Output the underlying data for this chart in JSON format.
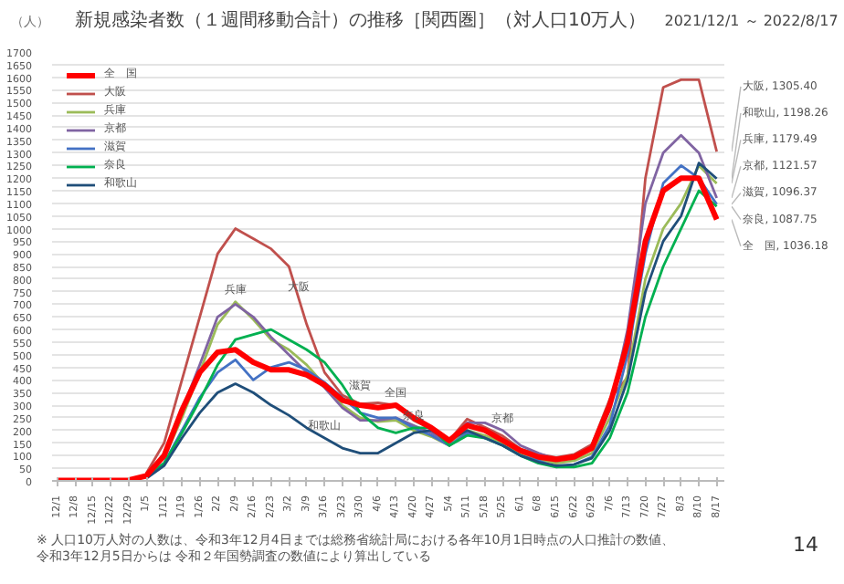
{
  "chart_data": {
    "type": "line",
    "title": "新規感染者数（１週間移動合計）の推移［関西圏］（対人口10万人）",
    "subtitle": "2021/12/1 ～ 2022/8/17",
    "ylabel": "（人）",
    "x": [
      "2021-12-01",
      "2021-12-08",
      "2021-12-15",
      "2021-12-22",
      "2021-12-29",
      "2022-01-05",
      "2022-01-12",
      "2022-01-19",
      "2022-01-26",
      "2022-02-02",
      "2022-02-09",
      "2022-02-16",
      "2022-02-23",
      "2022-03-02",
      "2022-03-09",
      "2022-03-16",
      "2022-03-23",
      "2022-03-30",
      "2022-04-06",
      "2022-04-13",
      "2022-04-20",
      "2022-04-27",
      "2022-05-04",
      "2022-05-11",
      "2022-05-18",
      "2022-05-25",
      "2022-06-01",
      "2022-06-08",
      "2022-06-15",
      "2022-06-22",
      "2022-06-29",
      "2022-07-06",
      "2022-07-13",
      "2022-07-20",
      "2022-07-27",
      "2022-08-03",
      "2022-08-10",
      "2022-08-17"
    ],
    "series": [
      {
        "name": "全　国",
        "color": "#ff0000",
        "values": [
          2,
          2,
          2,
          2,
          3,
          20,
          100,
          280,
          430,
          510,
          520,
          470,
          440,
          440,
          420,
          380,
          320,
          300,
          290,
          300,
          250,
          210,
          160,
          220,
          200,
          160,
          120,
          95,
          85,
          95,
          130,
          300,
          550,
          950,
          1150,
          1200,
          1200,
          1036.18
        ]
      },
      {
        "name": "大阪",
        "color": "#c0504d",
        "values": [
          null,
          null,
          null,
          null,
          null,
          30,
          150,
          400,
          650,
          900,
          1000,
          960,
          920,
          850,
          620,
          430,
          340,
          305,
          310,
          300,
          240,
          205,
          160,
          245,
          212,
          178,
          126,
          106,
          93,
          105,
          145,
          324,
          410,
          1200,
          1560,
          1590,
          1590,
          1305.4
        ]
      },
      {
        "name": "兵庫",
        "color": "#9bbb59",
        "values": [
          null,
          null,
          null,
          null,
          null,
          20,
          90,
          250,
          430,
          620,
          710,
          640,
          560,
          520,
          460,
          380,
          300,
          250,
          235,
          240,
          200,
          175,
          140,
          200,
          180,
          150,
          105,
          85,
          70,
          80,
          110,
          250,
          420,
          800,
          1000,
          1100,
          1250,
          1179.49
        ]
      },
      {
        "name": "京都",
        "color": "#8064a2",
        "values": [
          null,
          null,
          null,
          null,
          null,
          20,
          100,
          280,
          460,
          650,
          700,
          650,
          570,
          500,
          430,
          370,
          290,
          240,
          240,
          250,
          220,
          190,
          150,
          230,
          230,
          200,
          140,
          110,
          85,
          95,
          130,
          280,
          600,
          1100,
          1300,
          1370,
          1300,
          1121.57
        ]
      },
      {
        "name": "滋賀",
        "color": "#4472c4",
        "values": [
          null,
          null,
          null,
          null,
          null,
          15,
          70,
          200,
          330,
          430,
          480,
          400,
          450,
          470,
          440,
          390,
          330,
          270,
          250,
          250,
          210,
          180,
          140,
          190,
          170,
          140,
          100,
          80,
          55,
          65,
          95,
          220,
          500,
          900,
          1180,
          1250,
          1200,
          1096.37
        ]
      },
      {
        "name": "奈良",
        "color": "#00b050",
        "values": [
          null,
          null,
          null,
          null,
          null,
          15,
          70,
          190,
          320,
          460,
          560,
          580,
          600,
          560,
          520,
          470,
          380,
          270,
          210,
          190,
          210,
          210,
          140,
          180,
          170,
          140,
          100,
          70,
          55,
          55,
          70,
          170,
          350,
          650,
          850,
          1000,
          1150,
          1087.75
        ]
      },
      {
        "name": "和歌山",
        "color": "#1f4e79",
        "values": [
          null,
          null,
          null,
          null,
          null,
          10,
          60,
          170,
          270,
          350,
          385,
          350,
          300,
          260,
          210,
          170,
          130,
          110,
          110,
          150,
          190,
          200,
          160,
          200,
          170,
          140,
          100,
          75,
          60,
          65,
          90,
          200,
          400,
          750,
          950,
          1050,
          1260,
          1198.26
        ]
      }
    ],
    "xlim": [
      "2021-11-29",
      "2022-08-20"
    ],
    "xticks": [
      {
        "value": "2021-12-01",
        "label": "12/1"
      },
      {
        "value": "2021-12-08",
        "label": "12/8"
      },
      {
        "value": "2021-12-15",
        "label": "12/15"
      },
      {
        "value": "2021-12-22",
        "label": "12/22"
      },
      {
        "value": "2021-12-29",
        "label": "12/29"
      },
      {
        "value": "2022-01-05",
        "label": "1/5"
      },
      {
        "value": "2022-01-12",
        "label": "1/12"
      },
      {
        "value": "2022-01-19",
        "label": "1/19"
      },
      {
        "value": "2022-01-26",
        "label": "1/26"
      },
      {
        "value": "2022-02-02",
        "label": "2/2"
      },
      {
        "value": "2022-02-09",
        "label": "2/9"
      },
      {
        "value": "2022-02-16",
        "label": "2/16"
      },
      {
        "value": "2022-02-23",
        "label": "2/23"
      },
      {
        "value": "2022-03-02",
        "label": "3/2"
      },
      {
        "value": "2022-03-09",
        "label": "3/9"
      },
      {
        "value": "2022-03-16",
        "label": "3/16"
      },
      {
        "value": "2022-03-23",
        "label": "3/23"
      },
      {
        "value": "2022-03-30",
        "label": "3/30"
      },
      {
        "value": "2022-04-06",
        "label": "4/6"
      },
      {
        "value": "2022-04-13",
        "label": "4/13"
      },
      {
        "value": "2022-04-20",
        "label": "4/20"
      },
      {
        "value": "2022-04-27",
        "label": "4/27"
      },
      {
        "value": "2022-05-04",
        "label": "5/4"
      },
      {
        "value": "2022-05-11",
        "label": "5/11"
      },
      {
        "value": "2022-05-18",
        "label": "5/18"
      },
      {
        "value": "2022-05-25",
        "label": "5/25"
      },
      {
        "value": "2022-06-01",
        "label": "6/1"
      },
      {
        "value": "2022-06-08",
        "label": "6/8"
      },
      {
        "value": "2022-06-15",
        "label": "6/15"
      },
      {
        "value": "2022-06-22",
        "label": "6/22"
      },
      {
        "value": "2022-06-29",
        "label": "6/29"
      },
      {
        "value": "2022-07-06",
        "label": "7/6"
      },
      {
        "value": "2022-07-13",
        "label": "7/13"
      },
      {
        "value": "2022-07-20",
        "label": "7/20"
      },
      {
        "value": "2022-07-27",
        "label": "7/27"
      },
      {
        "value": "2022-08-03",
        "label": "8/3"
      },
      {
        "value": "2022-08-10",
        "label": "8/10"
      },
      {
        "value": "2022-08-17",
        "label": "8/17"
      }
    ],
    "ylim": [
      0,
      1700
    ],
    "yticks": [
      0,
      50,
      100,
      150,
      200,
      250,
      300,
      350,
      400,
      450,
      500,
      550,
      600,
      650,
      700,
      750,
      800,
      850,
      900,
      950,
      1000,
      1050,
      1100,
      1150,
      1200,
      1250,
      1300,
      1350,
      1400,
      1450,
      1500,
      1550,
      1600,
      1650,
      1700
    ],
    "grid": "y",
    "legend": "top left",
    "marker": "none",
    "line_style": "solid",
    "annotations": [
      {
        "text": "大阪, 1305.40",
        "x": "2022-08-17",
        "y": 1305.4
      },
      {
        "text": "和歌山, 1198.26",
        "x": "2022-08-17",
        "y": 1198.26
      },
      {
        "text": "兵庫, 1179.49",
        "x": "2022-08-17",
        "y": 1179.49
      },
      {
        "text": "京都, 1121.57",
        "x": "2022-08-17",
        "y": 1121.57
      },
      {
        "text": "滋賀, 1096.37",
        "x": "2022-08-17",
        "y": 1096.37
      },
      {
        "text": "奈良, 1087.75",
        "x": "2022-08-17",
        "y": 1087.75
      },
      {
        "text": "全　国, 1036.18",
        "x": "2022-08-17",
        "y": 1036.18
      },
      {
        "text": "兵庫",
        "x": "2022-02-09",
        "y": 710
      },
      {
        "text": "大阪",
        "x": "2022-03-06",
        "y": 720
      },
      {
        "text": "滋賀",
        "x": "2022-03-30",
        "y": 330
      },
      {
        "text": "全国",
        "x": "2022-04-13",
        "y": 300
      },
      {
        "text": "京都",
        "x": "2022-05-25",
        "y": 200
      },
      {
        "text": "和歌山",
        "x": "2022-03-16",
        "y": 170
      },
      {
        "text": "奈良",
        "x": "2022-04-20",
        "y": 210
      },
      "※ 人口10万人対の人数は、令和3年12月4日までは総務省統計局における各年10月1日時点の人口推計の数値、",
      "令和3年12月5日からは 令和２年国勢調査の数値により算出している",
      "14"
    ]
  }
}
